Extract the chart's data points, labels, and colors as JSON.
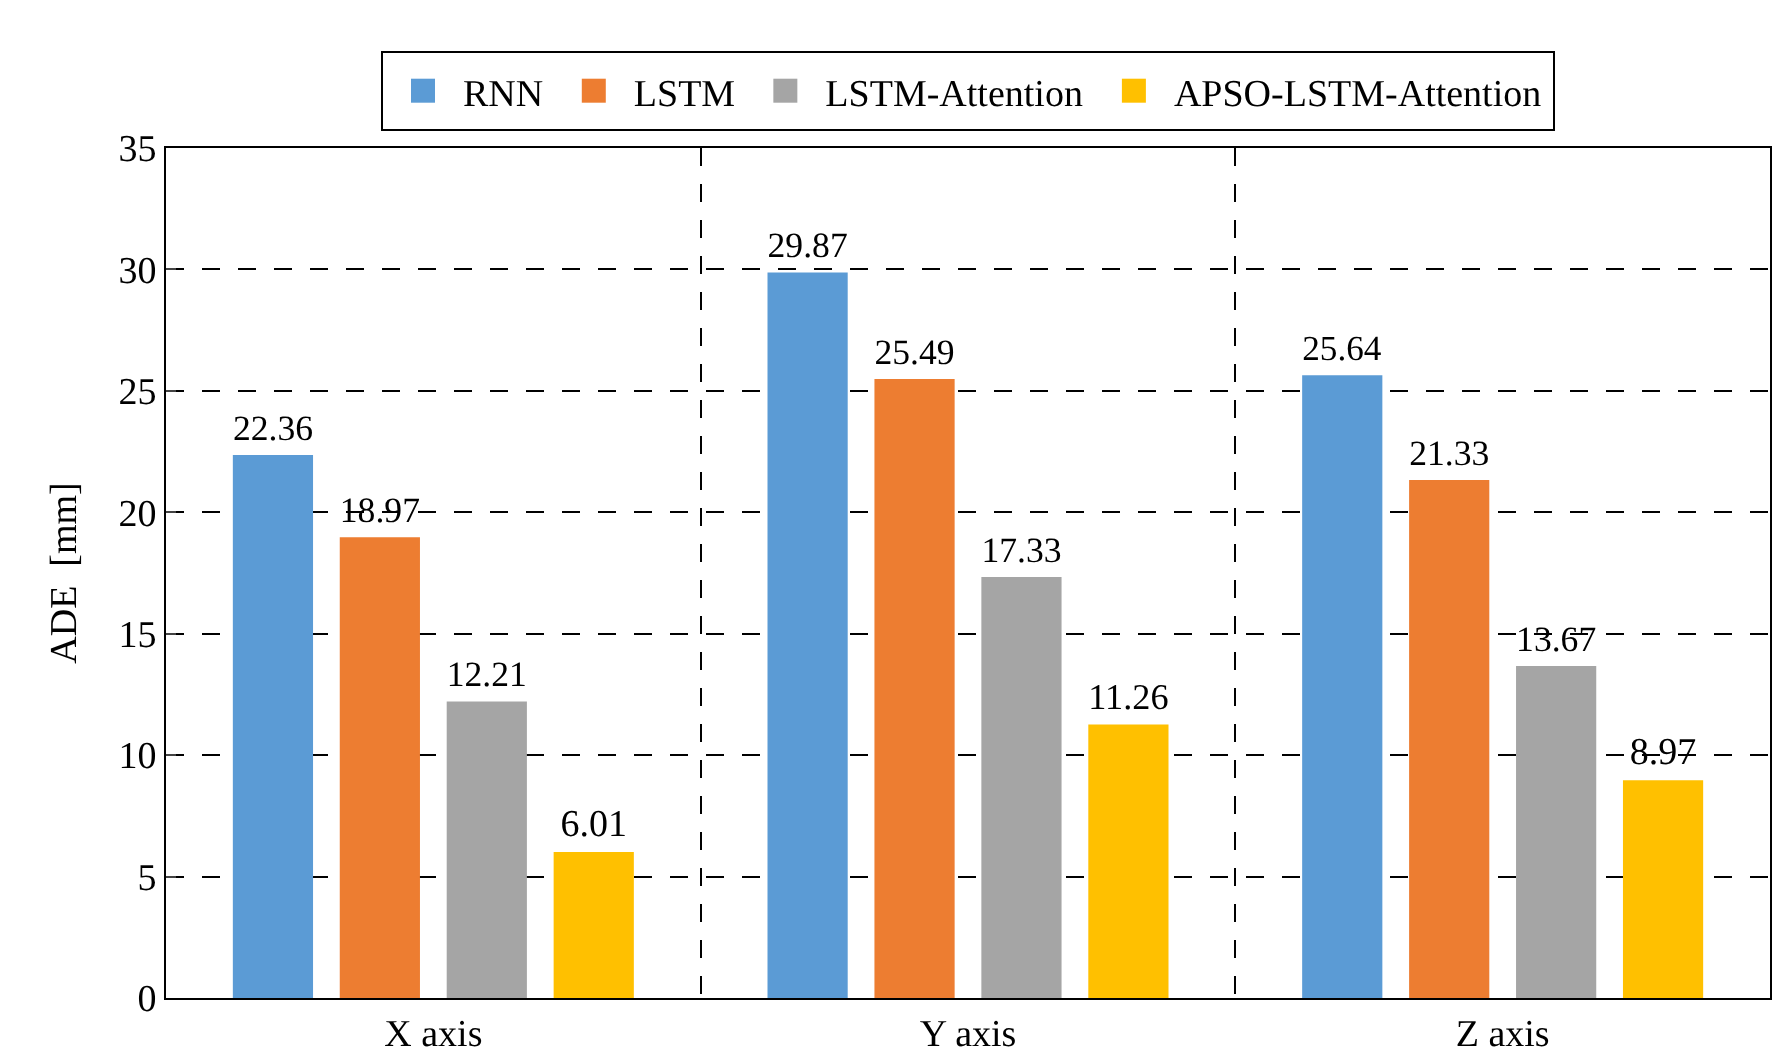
{
  "chart_data": {
    "type": "bar",
    "ylabel": "ADE  [mm]",
    "categories": [
      "X axis",
      "Y axis",
      "Z axis"
    ],
    "series": [
      {
        "name": "RNN",
        "color": "#5b9bd5",
        "values": [
          22.36,
          29.87,
          25.64
        ]
      },
      {
        "name": "LSTM",
        "color": "#ed7d31",
        "values": [
          18.97,
          25.49,
          21.33
        ]
      },
      {
        "name": "LSTM-Attention",
        "color": "#a5a5a5",
        "values": [
          12.21,
          17.33,
          13.67
        ]
      },
      {
        "name": "APSO-LSTM-Attention",
        "color": "#ffc000",
        "values": [
          6.01,
          11.26,
          8.97
        ]
      }
    ],
    "ylim": [
      0,
      35
    ],
    "yticks": [
      0,
      5,
      10,
      15,
      20,
      25,
      30,
      35
    ],
    "grid": true,
    "legend": "top",
    "data_labels": true
  }
}
